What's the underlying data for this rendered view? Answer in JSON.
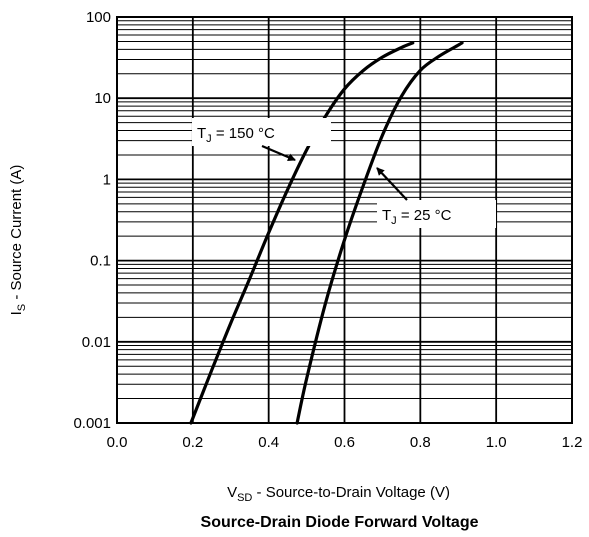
{
  "chart_data": {
    "type": "line",
    "title": "Source-Drain Diode Forward Voltage",
    "xlabel": {
      "main": "V",
      "sub": "SD",
      "rest": " - Source-to-Drain Voltage (V)"
    },
    "ylabel": {
      "main": "I",
      "sub": "S",
      "rest": " - Source Current (A)"
    },
    "xlim": [
      0.0,
      1.2
    ],
    "ylim": [
      0.001,
      100
    ],
    "yscale": "log",
    "grid": true,
    "x_ticks": [
      "0.0",
      "0.2",
      "0.4",
      "0.6",
      "0.8",
      "1.0",
      "1.2"
    ],
    "y_ticks": [
      "0.001",
      "0.01",
      "0.1",
      "1",
      "10",
      "100"
    ],
    "series": [
      {
        "name_main": "T",
        "name_sub": "J",
        "name_rest": " = 150 °C",
        "x": [
          0.195,
          0.25,
          0.3,
          0.35,
          0.4,
          0.45,
          0.5,
          0.55,
          0.6,
          0.65,
          0.7,
          0.75,
          0.78
        ],
        "y": [
          0.001,
          0.0045,
          0.017,
          0.06,
          0.22,
          0.75,
          2.3,
          6.0,
          13.0,
          22.0,
          32.0,
          42.0,
          48.0
        ]
      },
      {
        "name_main": "T",
        "name_sub": "J",
        "name_rest": " = 25 °C",
        "x": [
          0.475,
          0.5,
          0.55,
          0.6,
          0.65,
          0.7,
          0.75,
          0.8,
          0.85,
          0.9,
          0.91
        ],
        "y": [
          0.001,
          0.0035,
          0.03,
          0.18,
          0.85,
          3.5,
          10.5,
          22.0,
          33.0,
          45.0,
          48.0
        ]
      }
    ],
    "annotations": [
      {
        "series": 0,
        "placement": "left of curve"
      },
      {
        "series": 1,
        "placement": "right of curve"
      }
    ]
  }
}
